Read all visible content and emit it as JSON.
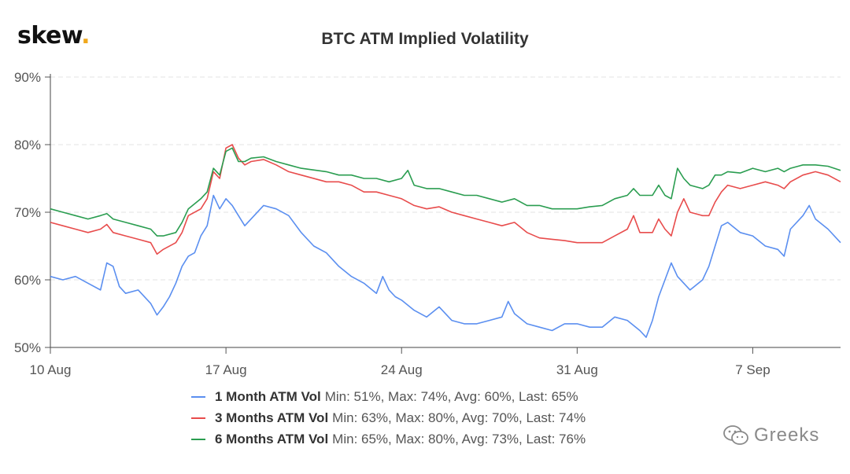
{
  "brand": {
    "name": "skew",
    "dot": "."
  },
  "watermark": {
    "text": "Greeks",
    "icon": "wechat-icon"
  },
  "chart_data": {
    "type": "line",
    "title": "BTC ATM Implied Volatility",
    "xlabel": "",
    "ylabel": "",
    "x_range": [
      "2020-08-10",
      "2020-09-10"
    ],
    "ylim": [
      50,
      90
    ],
    "y_ticks": [
      "50%",
      "60%",
      "70%",
      "80%",
      "90%"
    ],
    "x_ticks": [
      {
        "date": "2020-08-10",
        "label": "10 Aug"
      },
      {
        "date": "2020-08-17",
        "label": "17 Aug"
      },
      {
        "date": "2020-08-24",
        "label": "24 Aug"
      },
      {
        "date": "2020-08-31",
        "label": "31 Aug"
      },
      {
        "date": "2020-09-07",
        "label": "7 Sep"
      }
    ],
    "grid": true,
    "legend_position": "bottom-center",
    "series": [
      {
        "name": "1 Month ATM Vol",
        "color": "#5b8ff0",
        "stats": "Min: 51%, Max: 74%, Avg: 60%, Last: 65%",
        "points": [
          [
            "2020-08-10",
            60.5
          ],
          [
            "2020-08-10T12:00",
            60
          ],
          [
            "2020-08-11",
            60.5
          ],
          [
            "2020-08-11T12:00",
            59.5
          ],
          [
            "2020-08-12",
            58.5
          ],
          [
            "2020-08-12T06:00",
            62.5
          ],
          [
            "2020-08-12T12:00",
            62
          ],
          [
            "2020-08-12T18:00",
            59
          ],
          [
            "2020-08-13",
            58
          ],
          [
            "2020-08-13T12:00",
            58.5
          ],
          [
            "2020-08-14",
            56.5
          ],
          [
            "2020-08-14T06:00",
            54.8
          ],
          [
            "2020-08-14T12:00",
            56
          ],
          [
            "2020-08-14T18:00",
            57.5
          ],
          [
            "2020-08-15",
            59.5
          ],
          [
            "2020-08-15T06:00",
            62
          ],
          [
            "2020-08-15T12:00",
            63.5
          ],
          [
            "2020-08-15T18:00",
            64
          ],
          [
            "2020-08-16",
            66.5
          ],
          [
            "2020-08-16T06:00",
            68
          ],
          [
            "2020-08-16T12:00",
            72.5
          ],
          [
            "2020-08-16T18:00",
            70.5
          ],
          [
            "2020-08-17",
            72
          ],
          [
            "2020-08-17T06:00",
            71
          ],
          [
            "2020-08-17T12:00",
            69.5
          ],
          [
            "2020-08-17T18:00",
            68
          ],
          [
            "2020-08-18",
            69
          ],
          [
            "2020-08-18T12:00",
            71
          ],
          [
            "2020-08-19",
            70.5
          ],
          [
            "2020-08-19T12:00",
            69.5
          ],
          [
            "2020-08-20",
            67
          ],
          [
            "2020-08-20T12:00",
            65
          ],
          [
            "2020-08-21",
            64
          ],
          [
            "2020-08-21T12:00",
            62
          ],
          [
            "2020-08-22",
            60.5
          ],
          [
            "2020-08-22T12:00",
            59.5
          ],
          [
            "2020-08-23",
            58
          ],
          [
            "2020-08-23T06:00",
            60.5
          ],
          [
            "2020-08-23T12:00",
            58.5
          ],
          [
            "2020-08-23T18:00",
            57.5
          ],
          [
            "2020-08-24",
            57
          ],
          [
            "2020-08-24T12:00",
            55.5
          ],
          [
            "2020-08-25",
            54.5
          ],
          [
            "2020-08-25T12:00",
            56
          ],
          [
            "2020-08-26",
            54
          ],
          [
            "2020-08-26T12:00",
            53.5
          ],
          [
            "2020-08-27",
            53.5
          ],
          [
            "2020-08-27T12:00",
            54
          ],
          [
            "2020-08-28",
            54.5
          ],
          [
            "2020-08-28T06:00",
            56.8
          ],
          [
            "2020-08-28T12:00",
            55
          ],
          [
            "2020-08-29",
            53.5
          ],
          [
            "2020-08-29T12:00",
            53
          ],
          [
            "2020-08-30",
            52.5
          ],
          [
            "2020-08-30T12:00",
            53.5
          ],
          [
            "2020-08-31",
            53.5
          ],
          [
            "2020-08-31T12:00",
            53
          ],
          [
            "2020-09-01",
            53
          ],
          [
            "2020-09-01T12:00",
            54.5
          ],
          [
            "2020-09-02",
            54
          ],
          [
            "2020-09-02T12:00",
            52.5
          ],
          [
            "2020-09-02T18:00",
            51.5
          ],
          [
            "2020-09-03",
            54
          ],
          [
            "2020-09-03T06:00",
            57.5
          ],
          [
            "2020-09-03T12:00",
            60
          ],
          [
            "2020-09-03T18:00",
            62.5
          ],
          [
            "2020-09-04",
            60.5
          ],
          [
            "2020-09-04T12:00",
            58.5
          ],
          [
            "2020-09-05",
            60
          ],
          [
            "2020-09-05T06:00",
            62
          ],
          [
            "2020-09-05T12:00",
            65
          ],
          [
            "2020-09-05T18:00",
            68
          ],
          [
            "2020-09-06",
            68.5
          ],
          [
            "2020-09-06T12:00",
            67
          ],
          [
            "2020-09-07",
            66.5
          ],
          [
            "2020-09-07T12:00",
            65
          ],
          [
            "2020-09-08",
            64.5
          ],
          [
            "2020-09-08T06:00",
            63.5
          ],
          [
            "2020-09-08T12:00",
            67.5
          ],
          [
            "2020-09-09",
            69.5
          ],
          [
            "2020-09-09T06:00",
            71
          ],
          [
            "2020-09-09T12:00",
            69
          ],
          [
            "2020-09-10",
            67.5
          ],
          [
            "2020-09-10T12:00",
            65.5
          ]
        ]
      },
      {
        "name": "3 Months ATM Vol",
        "color": "#e84c4c",
        "stats": "Min: 63%, Max: 80%, Avg: 70%, Last: 74%",
        "points": [
          [
            "2020-08-10",
            68.5
          ],
          [
            "2020-08-10T12:00",
            68
          ],
          [
            "2020-08-11",
            67.5
          ],
          [
            "2020-08-11T12:00",
            67
          ],
          [
            "2020-08-12",
            67.5
          ],
          [
            "2020-08-12T06:00",
            68.2
          ],
          [
            "2020-08-12T12:00",
            67
          ],
          [
            "2020-08-13",
            66.5
          ],
          [
            "2020-08-13T12:00",
            66
          ],
          [
            "2020-08-14",
            65.5
          ],
          [
            "2020-08-14T06:00",
            63.8
          ],
          [
            "2020-08-14T12:00",
            64.5
          ],
          [
            "2020-08-15",
            65.5
          ],
          [
            "2020-08-15T06:00",
            67
          ],
          [
            "2020-08-15T12:00",
            69.5
          ],
          [
            "2020-08-16",
            70.5
          ],
          [
            "2020-08-16T06:00",
            72
          ],
          [
            "2020-08-16T12:00",
            76
          ],
          [
            "2020-08-16T18:00",
            75
          ],
          [
            "2020-08-17",
            79.5
          ],
          [
            "2020-08-17T06:00",
            80
          ],
          [
            "2020-08-17T12:00",
            78
          ],
          [
            "2020-08-17T18:00",
            77
          ],
          [
            "2020-08-18",
            77.5
          ],
          [
            "2020-08-18T12:00",
            77.8
          ],
          [
            "2020-08-19",
            77
          ],
          [
            "2020-08-19T12:00",
            76
          ],
          [
            "2020-08-20",
            75.5
          ],
          [
            "2020-08-21",
            74.5
          ],
          [
            "2020-08-21T12:00",
            74.5
          ],
          [
            "2020-08-22",
            74
          ],
          [
            "2020-08-22T12:00",
            73
          ],
          [
            "2020-08-23",
            73
          ],
          [
            "2020-08-23T12:00",
            72.5
          ],
          [
            "2020-08-24",
            72
          ],
          [
            "2020-08-24T12:00",
            71
          ],
          [
            "2020-08-25",
            70.5
          ],
          [
            "2020-08-25T12:00",
            70.8
          ],
          [
            "2020-08-26",
            70
          ],
          [
            "2020-08-26T12:00",
            69.5
          ],
          [
            "2020-08-27",
            69
          ],
          [
            "2020-08-27T12:00",
            68.5
          ],
          [
            "2020-08-28",
            68
          ],
          [
            "2020-08-28T12:00",
            68.5
          ],
          [
            "2020-08-29",
            67
          ],
          [
            "2020-08-29T12:00",
            66.2
          ],
          [
            "2020-08-30",
            66
          ],
          [
            "2020-08-30T12:00",
            65.8
          ],
          [
            "2020-08-31",
            65.5
          ],
          [
            "2020-08-31T12:00",
            65.5
          ],
          [
            "2020-09-01",
            65.5
          ],
          [
            "2020-09-01T12:00",
            66.5
          ],
          [
            "2020-09-02",
            67.5
          ],
          [
            "2020-09-02T06:00",
            69.5
          ],
          [
            "2020-09-02T12:00",
            67
          ],
          [
            "2020-09-03",
            67
          ],
          [
            "2020-09-03T06:00",
            69
          ],
          [
            "2020-09-03T12:00",
            67.5
          ],
          [
            "2020-09-03T18:00",
            66.5
          ],
          [
            "2020-09-04",
            70
          ],
          [
            "2020-09-04T06:00",
            72
          ],
          [
            "2020-09-04T12:00",
            70
          ],
          [
            "2020-09-05",
            69.5
          ],
          [
            "2020-09-05T06:00",
            69.5
          ],
          [
            "2020-09-05T12:00",
            71.5
          ],
          [
            "2020-09-05T18:00",
            73
          ],
          [
            "2020-09-06",
            74
          ],
          [
            "2020-09-06T12:00",
            73.5
          ],
          [
            "2020-09-07",
            74
          ],
          [
            "2020-09-07T12:00",
            74.5
          ],
          [
            "2020-09-08",
            74
          ],
          [
            "2020-09-08T06:00",
            73.5
          ],
          [
            "2020-09-08T12:00",
            74.5
          ],
          [
            "2020-09-09",
            75.5
          ],
          [
            "2020-09-09T12:00",
            76
          ],
          [
            "2020-09-10",
            75.5
          ],
          [
            "2020-09-10T12:00",
            74.5
          ]
        ]
      },
      {
        "name": "6 Months ATM Vol",
        "color": "#2a9d50",
        "stats": "Min: 65%, Max: 80%, Avg: 73%, Last: 76%",
        "points": [
          [
            "2020-08-10",
            70.5
          ],
          [
            "2020-08-10T12:00",
            70
          ],
          [
            "2020-08-11",
            69.5
          ],
          [
            "2020-08-11T12:00",
            69
          ],
          [
            "2020-08-12",
            69.5
          ],
          [
            "2020-08-12T06:00",
            69.8
          ],
          [
            "2020-08-12T12:00",
            69
          ],
          [
            "2020-08-13",
            68.5
          ],
          [
            "2020-08-13T12:00",
            68
          ],
          [
            "2020-08-14",
            67.5
          ],
          [
            "2020-08-14T06:00",
            66.5
          ],
          [
            "2020-08-14T12:00",
            66.5
          ],
          [
            "2020-08-15",
            67
          ],
          [
            "2020-08-15T06:00",
            68.5
          ],
          [
            "2020-08-15T12:00",
            70.5
          ],
          [
            "2020-08-16",
            72
          ],
          [
            "2020-08-16T06:00",
            73
          ],
          [
            "2020-08-16T12:00",
            76.5
          ],
          [
            "2020-08-16T18:00",
            75.5
          ],
          [
            "2020-08-17",
            79
          ],
          [
            "2020-08-17T06:00",
            79.5
          ],
          [
            "2020-08-17T12:00",
            77.5
          ],
          [
            "2020-08-17T18:00",
            77.5
          ],
          [
            "2020-08-18",
            78
          ],
          [
            "2020-08-18T12:00",
            78.2
          ],
          [
            "2020-08-19",
            77.5
          ],
          [
            "2020-08-19T12:00",
            77
          ],
          [
            "2020-08-20",
            76.5
          ],
          [
            "2020-08-21",
            76
          ],
          [
            "2020-08-21T12:00",
            75.5
          ],
          [
            "2020-08-22",
            75.5
          ],
          [
            "2020-08-22T12:00",
            75
          ],
          [
            "2020-08-23",
            75
          ],
          [
            "2020-08-23T12:00",
            74.5
          ],
          [
            "2020-08-24",
            75
          ],
          [
            "2020-08-24T06:00",
            76.2
          ],
          [
            "2020-08-24T12:00",
            74
          ],
          [
            "2020-08-25",
            73.5
          ],
          [
            "2020-08-25T12:00",
            73.5
          ],
          [
            "2020-08-26",
            73
          ],
          [
            "2020-08-26T12:00",
            72.5
          ],
          [
            "2020-08-27",
            72.5
          ],
          [
            "2020-08-27T12:00",
            72
          ],
          [
            "2020-08-28",
            71.5
          ],
          [
            "2020-08-28T12:00",
            72
          ],
          [
            "2020-08-29",
            71
          ],
          [
            "2020-08-29T12:00",
            71
          ],
          [
            "2020-08-30",
            70.5
          ],
          [
            "2020-08-30T12:00",
            70.5
          ],
          [
            "2020-08-31",
            70.5
          ],
          [
            "2020-08-31T12:00",
            70.8
          ],
          [
            "2020-09-01",
            71
          ],
          [
            "2020-09-01T12:00",
            72
          ],
          [
            "2020-09-02",
            72.5
          ],
          [
            "2020-09-02T06:00",
            73.5
          ],
          [
            "2020-09-02T12:00",
            72.5
          ],
          [
            "2020-09-03",
            72.5
          ],
          [
            "2020-09-03T06:00",
            74
          ],
          [
            "2020-09-03T12:00",
            72.5
          ],
          [
            "2020-09-03T18:00",
            72
          ],
          [
            "2020-09-04",
            76.5
          ],
          [
            "2020-09-04T06:00",
            75
          ],
          [
            "2020-09-04T12:00",
            74
          ],
          [
            "2020-09-05",
            73.5
          ],
          [
            "2020-09-05T06:00",
            74
          ],
          [
            "2020-09-05T12:00",
            75.5
          ],
          [
            "2020-09-05T18:00",
            75.5
          ],
          [
            "2020-09-06",
            76
          ],
          [
            "2020-09-06T12:00",
            75.8
          ],
          [
            "2020-09-07",
            76.5
          ],
          [
            "2020-09-07T12:00",
            76
          ],
          [
            "2020-09-08",
            76.5
          ],
          [
            "2020-09-08T06:00",
            76
          ],
          [
            "2020-09-08T12:00",
            76.5
          ],
          [
            "2020-09-09",
            77
          ],
          [
            "2020-09-09T12:00",
            77
          ],
          [
            "2020-09-10",
            76.8
          ],
          [
            "2020-09-10T12:00",
            76.2
          ]
        ]
      }
    ]
  }
}
